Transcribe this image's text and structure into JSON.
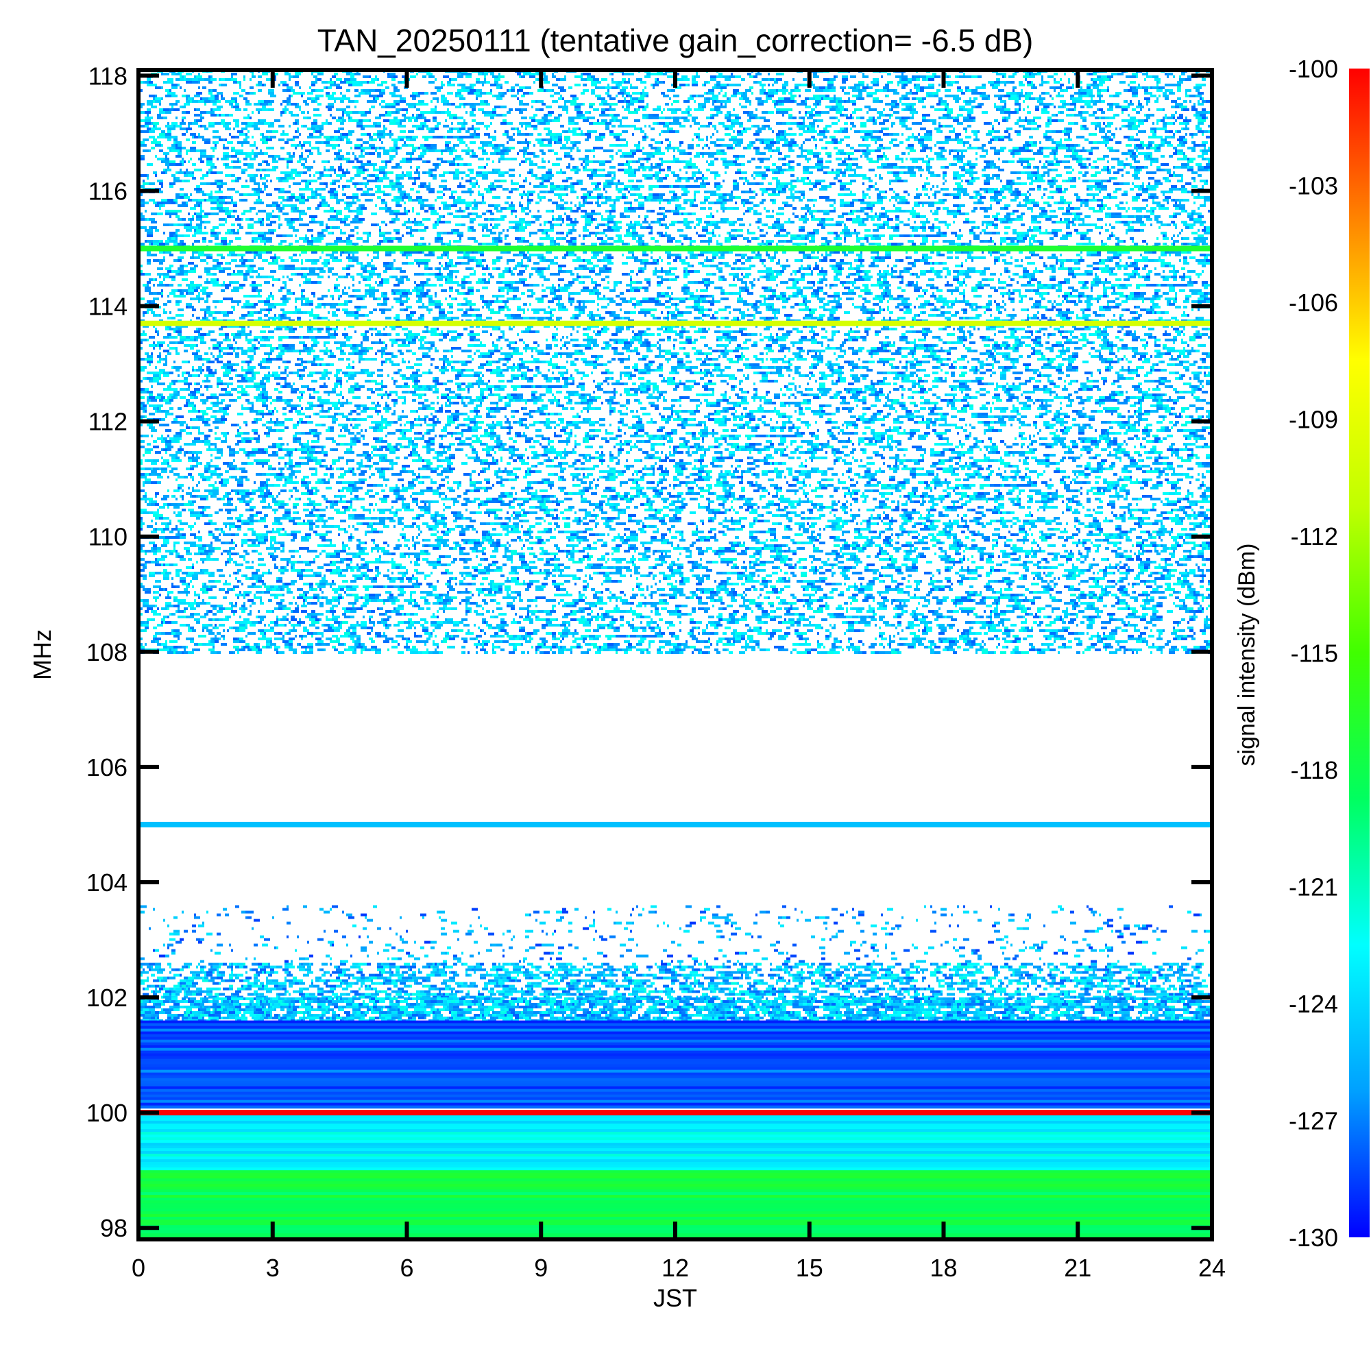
{
  "chart_data": {
    "type": "heatmap",
    "title": "TAN_20250111 (tentative gain_correction= -6.5 dB)",
    "xlabel": "JST",
    "ylabel": "MHz",
    "colorbar_label": "signal intensity (dBm)",
    "xlim": [
      0,
      24
    ],
    "ylim": [
      97.8,
      118.1
    ],
    "x_ticks": [
      "0",
      "3",
      "6",
      "9",
      "12",
      "15",
      "18",
      "21",
      "24"
    ],
    "y_ticks": [
      "98",
      "100",
      "102",
      "104",
      "106",
      "108",
      "110",
      "112",
      "114",
      "116",
      "118"
    ],
    "colorbar_range": [
      -130,
      -100
    ],
    "colorbar_ticks": [
      "-100",
      "-103",
      "-106",
      "-109",
      "-112",
      "-115",
      "-118",
      "-121",
      "-124",
      "-127",
      "-130"
    ],
    "colormap": [
      "#0000ff",
      "#00a0ff",
      "#00ffff",
      "#00ff60",
      "#40ff00",
      "#c0ff00",
      "#ffff00",
      "#ff8000",
      "#ff0000"
    ],
    "strong_signals": [
      {
        "freq_mhz": 113.7,
        "level_dbm": -110
      },
      {
        "freq_mhz": 115.0,
        "level_dbm": -117
      },
      {
        "freq_mhz": 105.0,
        "level_dbm": -125
      },
      {
        "freq_mhz": 100.0,
        "level_dbm": -100
      }
    ],
    "noise_bands": [
      {
        "from_mhz": 108.0,
        "to_mhz": 118.1,
        "density": 0.45,
        "level_dbm": -126
      },
      {
        "from_mhz": 102.0,
        "to_mhz": 102.6,
        "density": 0.6,
        "level_dbm": -126
      },
      {
        "from_mhz": 102.6,
        "to_mhz": 103.6,
        "density": 0.12,
        "level_dbm": -127
      },
      {
        "from_mhz": 101.6,
        "to_mhz": 102.0,
        "density": 0.85,
        "level_dbm": -126
      },
      {
        "from_mhz": 100.1,
        "to_mhz": 101.6,
        "density": 1.0,
        "level_dbm": -128
      },
      {
        "from_mhz": 99.0,
        "to_mhz": 100.0,
        "density": 1.0,
        "level_dbm": -123
      },
      {
        "from_mhz": 97.8,
        "to_mhz": 99.0,
        "density": 1.0,
        "level_dbm": -118
      }
    ]
  }
}
